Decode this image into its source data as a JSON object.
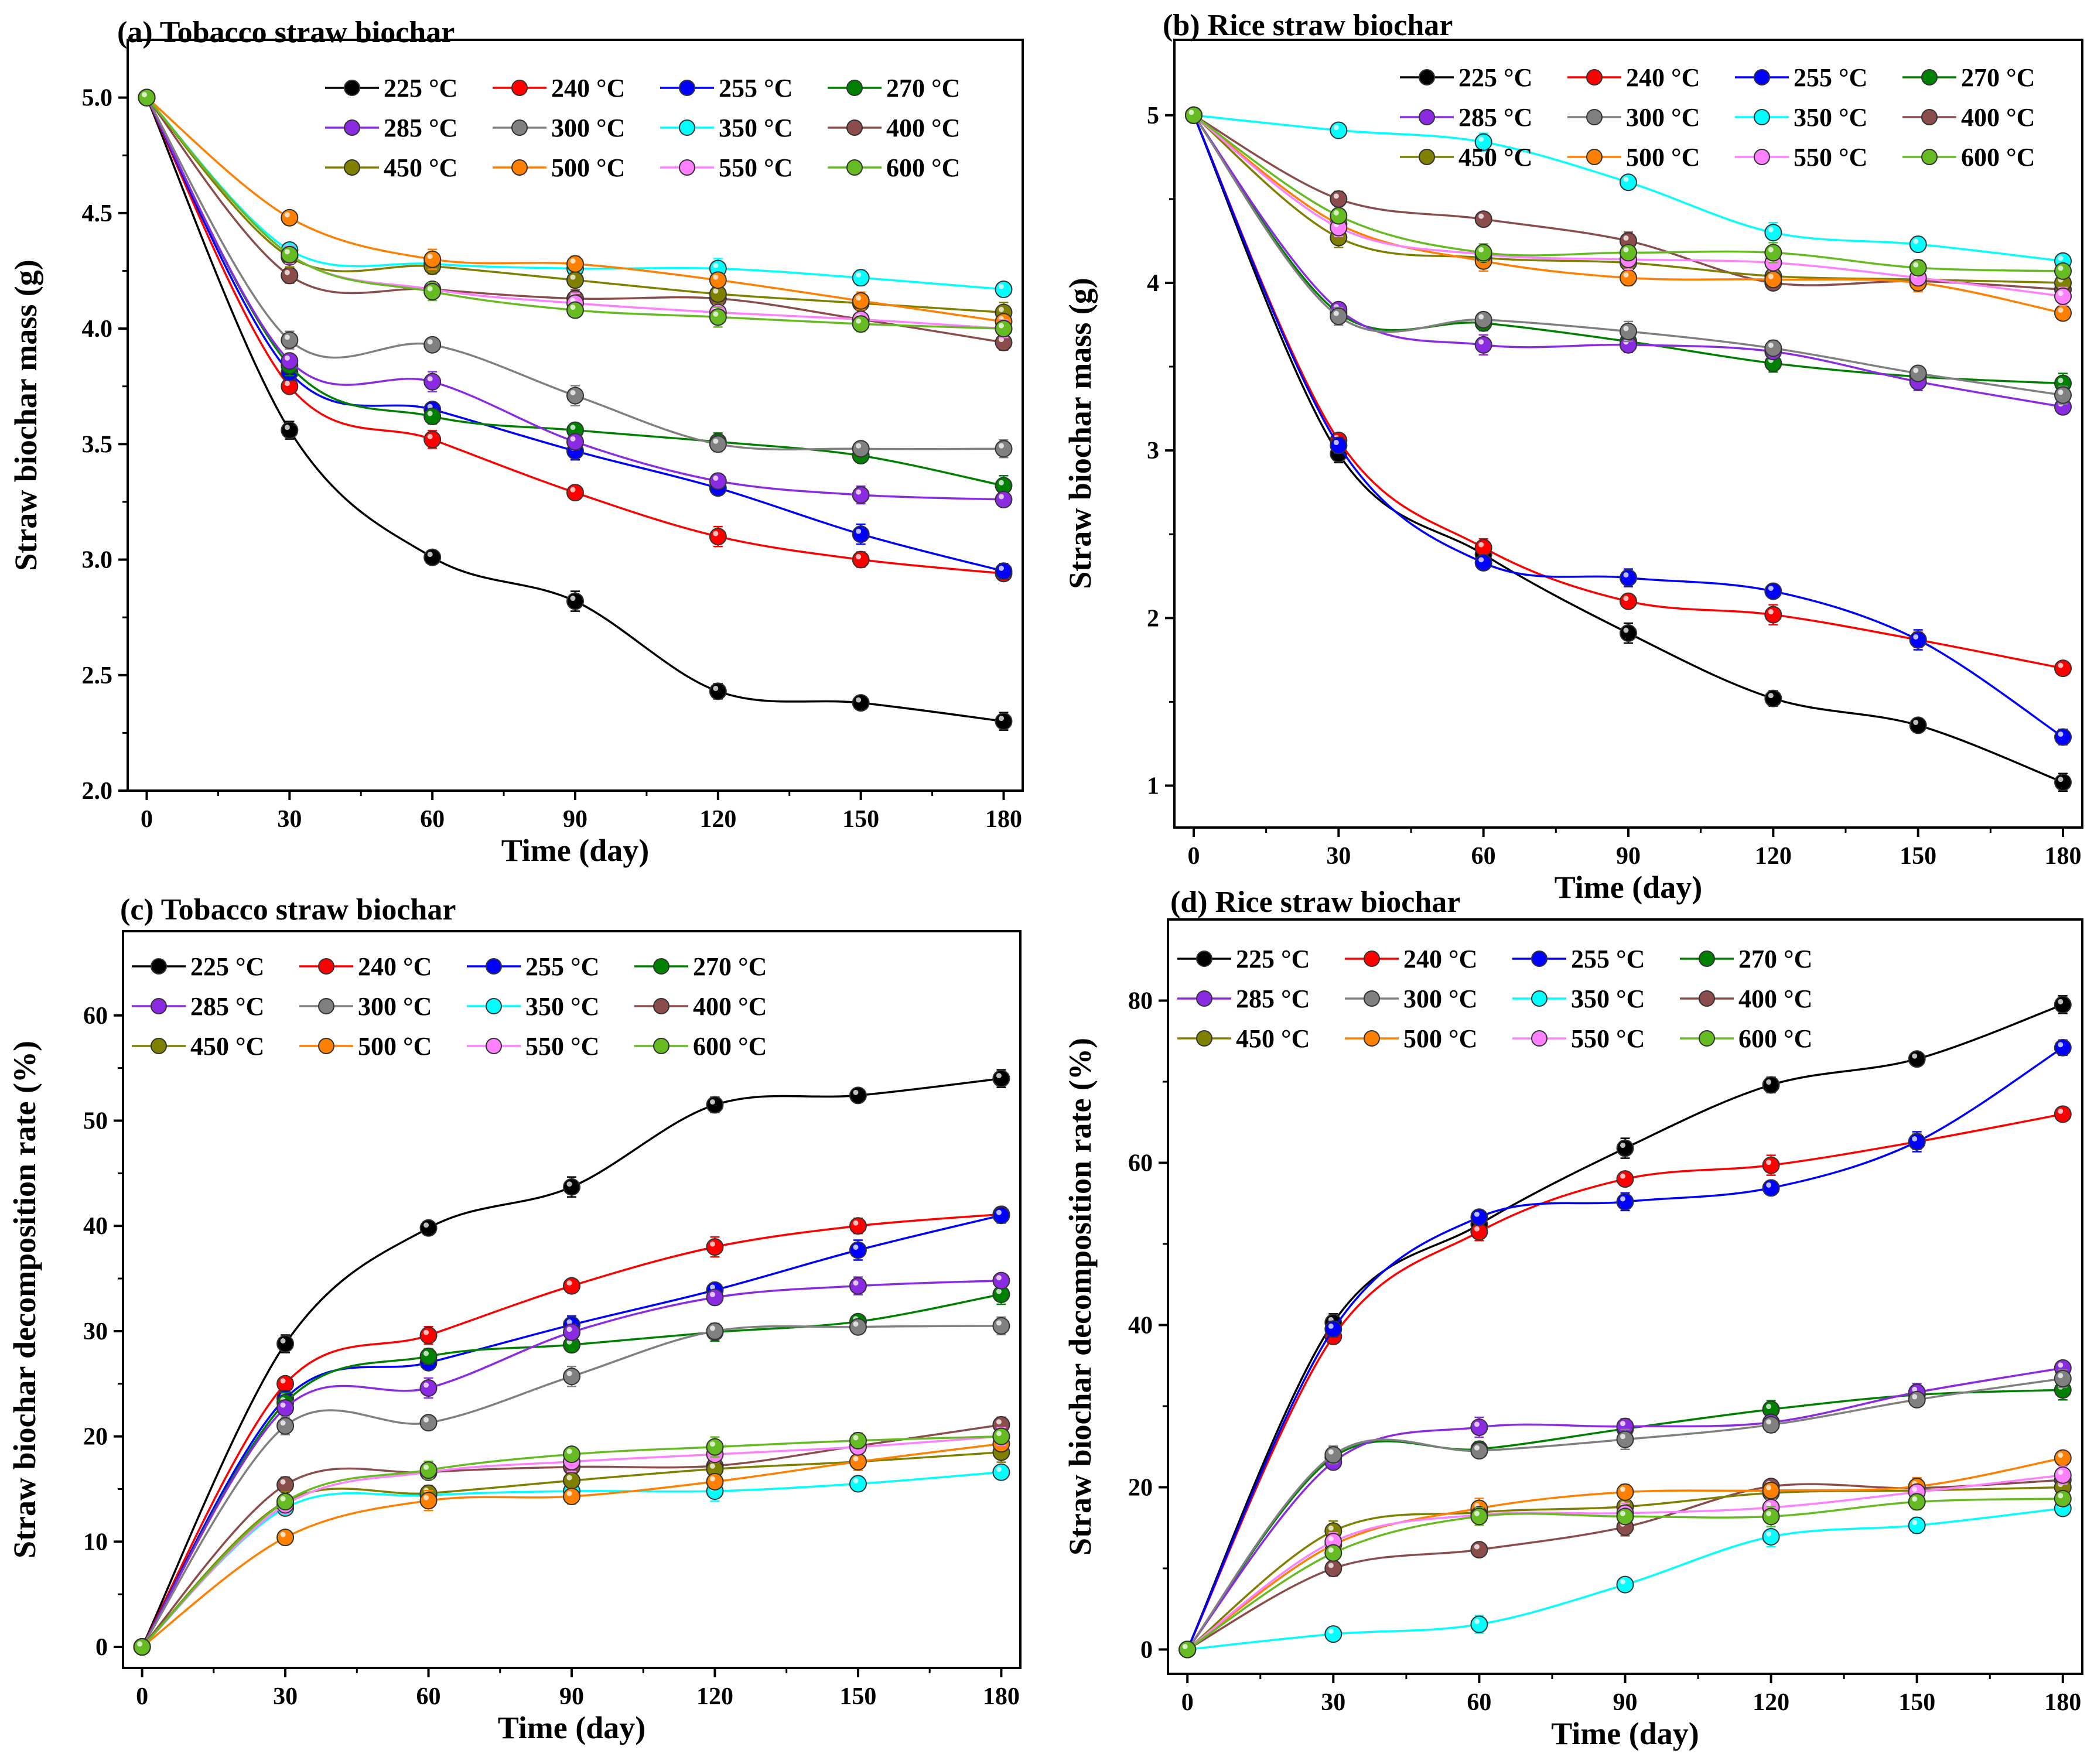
{
  "series_colors": {
    "225 °C": "#000000",
    "240 °C": "#ff0000",
    "255 °C": "#0000ff",
    "270 °C": "#008000",
    "285 °C": "#8a2be2",
    "300 °C": "#808080",
    "350 °C": "#00ffff",
    "400 °C": "#8b4c4c",
    "450 °C": "#808000",
    "500 °C": "#ff8000",
    "550 °C": "#ff80ff",
    "600 °C": "#66bb22"
  },
  "chart_data": [
    {
      "type": "line",
      "title": "(a) Tobacco straw biochar",
      "xlabel": "Time (day)",
      "ylabel": "Straw biochar mass (g)",
      "x": [
        0,
        30,
        60,
        90,
        120,
        150,
        180
      ],
      "xlim": [
        -4,
        184
      ],
      "ylim": [
        2.0,
        5.25
      ],
      "xticks": [
        "0",
        "30",
        "60",
        "90",
        "120",
        "150",
        "180"
      ],
      "yticks": [
        "2.0",
        "2.5",
        "3.0",
        "3.5",
        "4.0",
        "4.5",
        "5.0"
      ],
      "legend_position": "top-right",
      "series": [
        {
          "name": "225 °C",
          "values": [
            5.0,
            3.56,
            3.01,
            2.82,
            2.43,
            2.38,
            2.3
          ]
        },
        {
          "name": "240 °C",
          "values": [
            5.0,
            3.75,
            3.52,
            3.29,
            3.1,
            3.0,
            2.94
          ]
        },
        {
          "name": "255 °C",
          "values": [
            5.0,
            3.81,
            3.65,
            3.47,
            3.31,
            3.11,
            2.95
          ]
        },
        {
          "name": "270 °C",
          "values": [
            5.0,
            3.84,
            3.62,
            3.56,
            3.51,
            3.45,
            3.32
          ]
        },
        {
          "name": "285 °C",
          "values": [
            5.0,
            3.86,
            3.77,
            3.51,
            3.34,
            3.28,
            3.26
          ]
        },
        {
          "name": "300 °C",
          "values": [
            5.0,
            3.95,
            3.93,
            3.71,
            3.5,
            3.48,
            3.48
          ]
        },
        {
          "name": "350 °C",
          "values": [
            5.0,
            4.34,
            4.28,
            4.26,
            4.26,
            4.22,
            4.17
          ]
        },
        {
          "name": "400 °C",
          "values": [
            5.0,
            4.23,
            4.17,
            4.13,
            4.13,
            4.04,
            3.94
          ]
        },
        {
          "name": "450 °C",
          "values": [
            5.0,
            4.31,
            4.27,
            4.21,
            4.15,
            4.11,
            4.07
          ]
        },
        {
          "name": "500 °C",
          "values": [
            5.0,
            4.48,
            4.3,
            4.28,
            4.21,
            4.12,
            4.03
          ]
        },
        {
          "name": "550 °C",
          "values": [
            5.0,
            4.32,
            4.17,
            4.11,
            4.07,
            4.04,
            4.0
          ]
        },
        {
          "name": "600 °C",
          "values": [
            5.0,
            4.32,
            4.16,
            4.08,
            4.05,
            4.02,
            4.0
          ]
        }
      ]
    },
    {
      "type": "line",
      "title": "(b) Rice straw biochar",
      "xlabel": "Time (day)",
      "ylabel": "Straw biochar mass (g)",
      "x": [
        0,
        30,
        60,
        90,
        120,
        150,
        180
      ],
      "xlim": [
        -4,
        184
      ],
      "ylim": [
        0.75,
        5.45
      ],
      "xticks": [
        "0",
        "30",
        "60",
        "90",
        "120",
        "150",
        "180"
      ],
      "yticks": [
        "1",
        "2",
        "3",
        "4",
        "5"
      ],
      "legend_position": "top-right",
      "series": [
        {
          "name": "225 °C",
          "values": [
            5.0,
            2.98,
            2.38,
            1.91,
            1.52,
            1.36,
            1.02
          ]
        },
        {
          "name": "240 °C",
          "values": [
            5.0,
            3.06,
            2.42,
            2.1,
            2.02,
            1.87,
            1.7
          ]
        },
        {
          "name": "255 °C",
          "values": [
            5.0,
            3.03,
            2.33,
            2.24,
            2.16,
            1.87,
            1.29
          ]
        },
        {
          "name": "270 °C",
          "values": [
            5.0,
            3.82,
            3.76,
            3.65,
            3.52,
            3.44,
            3.4
          ]
        },
        {
          "name": "285 °C",
          "values": [
            5.0,
            3.84,
            3.63,
            3.63,
            3.59,
            3.41,
            3.26
          ]
        },
        {
          "name": "300 °C",
          "values": [
            5.0,
            3.8,
            3.78,
            3.71,
            3.61,
            3.46,
            3.33
          ]
        },
        {
          "name": "350 °C",
          "values": [
            5.0,
            4.91,
            4.84,
            4.6,
            4.3,
            4.23,
            4.13
          ]
        },
        {
          "name": "400 °C",
          "values": [
            5.0,
            4.5,
            4.38,
            4.25,
            4.0,
            4.01,
            3.96
          ]
        },
        {
          "name": "450 °C",
          "values": [
            5.0,
            4.27,
            4.15,
            4.12,
            4.04,
            4.02,
            4.0
          ]
        },
        {
          "name": "500 °C",
          "values": [
            5.0,
            4.35,
            4.13,
            4.03,
            4.02,
            4.0,
            3.82
          ]
        },
        {
          "name": "550 °C",
          "values": [
            5.0,
            4.33,
            4.17,
            4.14,
            4.12,
            4.03,
            3.92
          ]
        },
        {
          "name": "600 °C",
          "values": [
            5.0,
            4.4,
            4.18,
            4.18,
            4.18,
            4.09,
            4.07
          ]
        }
      ]
    },
    {
      "type": "line",
      "title": "(c) Tobacco straw biochar",
      "xlabel": "Time (day)",
      "ylabel": "Straw biochar decomposition rate (%)",
      "x": [
        0,
        30,
        60,
        90,
        120,
        150,
        180
      ],
      "xlim": [
        -4,
        184
      ],
      "ylim": [
        -2,
        68
      ],
      "xticks": [
        "0",
        "30",
        "60",
        "90",
        "120",
        "150",
        "180"
      ],
      "yticks": [
        "0",
        "10",
        "20",
        "30",
        "40",
        "50",
        "60"
      ],
      "legend_position": "top-left",
      "series": [
        {
          "name": "225 °C",
          "values": [
            0,
            28.8,
            39.8,
            43.7,
            51.5,
            52.4,
            54.0
          ]
        },
        {
          "name": "240 °C",
          "values": [
            0,
            25.0,
            29.6,
            34.3,
            38.0,
            40.0,
            41.1
          ]
        },
        {
          "name": "255 °C",
          "values": [
            0,
            23.6,
            27.0,
            30.6,
            33.9,
            37.7,
            41.0
          ]
        },
        {
          "name": "270 °C",
          "values": [
            0,
            23.2,
            27.6,
            28.7,
            29.9,
            30.9,
            33.5
          ]
        },
        {
          "name": "285 °C",
          "values": [
            0,
            22.7,
            24.6,
            29.9,
            33.2,
            34.3,
            34.8
          ]
        },
        {
          "name": "300 °C",
          "values": [
            0,
            21.0,
            21.3,
            25.7,
            30.0,
            30.4,
            30.5
          ]
        },
        {
          "name": "350 °C",
          "values": [
            0,
            13.2,
            14.4,
            14.8,
            14.8,
            15.5,
            16.6
          ]
        },
        {
          "name": "400 °C",
          "values": [
            0,
            15.4,
            16.6,
            17.1,
            17.2,
            19.1,
            21.1
          ]
        },
        {
          "name": "450 °C",
          "values": [
            0,
            13.8,
            14.6,
            15.8,
            16.9,
            17.6,
            18.5
          ]
        },
        {
          "name": "500 °C",
          "values": [
            0,
            10.4,
            13.9,
            14.3,
            15.7,
            17.6,
            19.3
          ]
        },
        {
          "name": "550 °C",
          "values": [
            0,
            13.5,
            16.6,
            17.6,
            18.3,
            19.0,
            20.0
          ]
        },
        {
          "name": "600 °C",
          "values": [
            0,
            13.8,
            16.8,
            18.3,
            19.0,
            19.6,
            20.0
          ]
        }
      ]
    },
    {
      "type": "line",
      "title": "(d) Rice straw biochar",
      "xlabel": "Time (day)",
      "ylabel": "Straw biochar decomposition rate (%)",
      "x": [
        0,
        30,
        60,
        90,
        120,
        150,
        180
      ],
      "xlim": [
        -4,
        184
      ],
      "ylim": [
        -3,
        90
      ],
      "xticks": [
        "0",
        "30",
        "60",
        "90",
        "120",
        "150",
        "180"
      ],
      "yticks": [
        "0",
        "20",
        "40",
        "60",
        "80"
      ],
      "legend_position": "top-left",
      "series": [
        {
          "name": "225 °C",
          "values": [
            0,
            40.3,
            52.4,
            61.8,
            69.6,
            72.8,
            79.5
          ]
        },
        {
          "name": "240 °C",
          "values": [
            0,
            38.6,
            51.5,
            58.0,
            59.7,
            62.6,
            66.0
          ]
        },
        {
          "name": "255 °C",
          "values": [
            0,
            39.5,
            53.3,
            55.2,
            56.9,
            62.6,
            74.2
          ]
        },
        {
          "name": "270 °C",
          "values": [
            0,
            23.7,
            24.7,
            27.2,
            29.6,
            31.4,
            32.0
          ]
        },
        {
          "name": "285 °C",
          "values": [
            0,
            23.1,
            27.4,
            27.5,
            28.0,
            31.7,
            34.7
          ]
        },
        {
          "name": "300 °C",
          "values": [
            0,
            24.0,
            24.5,
            25.9,
            27.7,
            30.8,
            33.4
          ]
        },
        {
          "name": "350 °C",
          "values": [
            0,
            1.9,
            3.1,
            8.0,
            13.9,
            15.3,
            17.4
          ]
        },
        {
          "name": "400 °C",
          "values": [
            0,
            10.0,
            12.3,
            15.1,
            20.1,
            19.9,
            20.9
          ]
        },
        {
          "name": "450 °C",
          "values": [
            0,
            14.6,
            16.9,
            17.6,
            19.3,
            19.6,
            20.0
          ]
        },
        {
          "name": "500 °C",
          "values": [
            0,
            12.9,
            17.4,
            19.4,
            19.6,
            20.1,
            23.6
          ]
        },
        {
          "name": "550 °C",
          "values": [
            0,
            13.3,
            16.6,
            16.8,
            17.5,
            19.4,
            21.5
          ]
        },
        {
          "name": "600 °C",
          "values": [
            0,
            11.9,
            16.4,
            16.4,
            16.4,
            18.2,
            18.6
          ]
        }
      ]
    }
  ]
}
